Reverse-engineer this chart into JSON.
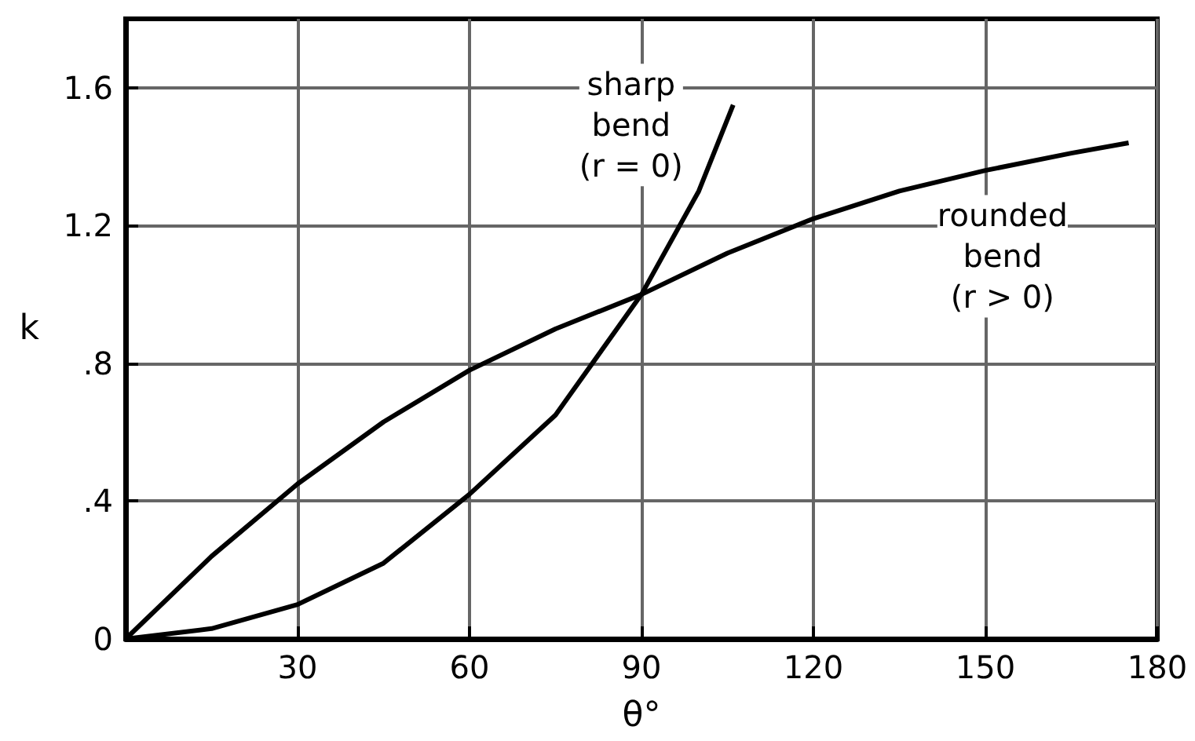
{
  "chart_data": {
    "type": "line",
    "xlabel": "θ°",
    "ylabel": "k",
    "xlim": [
      0,
      180
    ],
    "xticks": [
      30,
      60,
      90,
      120,
      150,
      180
    ],
    "ylim": [
      0,
      1.8
    ],
    "yticks": [
      0,
      {
        "value": 0.4,
        "label": ".4"
      },
      {
        "value": 0.8,
        "label": ".8"
      },
      1.2,
      1.6
    ],
    "grid": true,
    "marker": "none",
    "line_style": "solid",
    "series": [
      {
        "color": "#000000",
        "x": [
          0,
          15,
          30,
          45,
          60,
          75,
          90,
          100,
          106
        ],
        "values": [
          0,
          0.03,
          0.1,
          0.22,
          0.42,
          0.65,
          1.0,
          1.3,
          1.55
        ]
      },
      {
        "color": "#000000",
        "x": [
          0,
          15,
          30,
          45,
          60,
          75,
          90,
          105,
          120,
          135,
          150,
          165,
          175
        ],
        "values": [
          0,
          0.24,
          0.45,
          0.63,
          0.78,
          0.9,
          1.0,
          1.12,
          1.22,
          1.3,
          1.36,
          1.41,
          1.44
        ]
      }
    ],
    "annotations": [
      "sharp\nbend\n(r = 0)",
      "rounded\nbend\n(r > 0)"
    ]
  }
}
